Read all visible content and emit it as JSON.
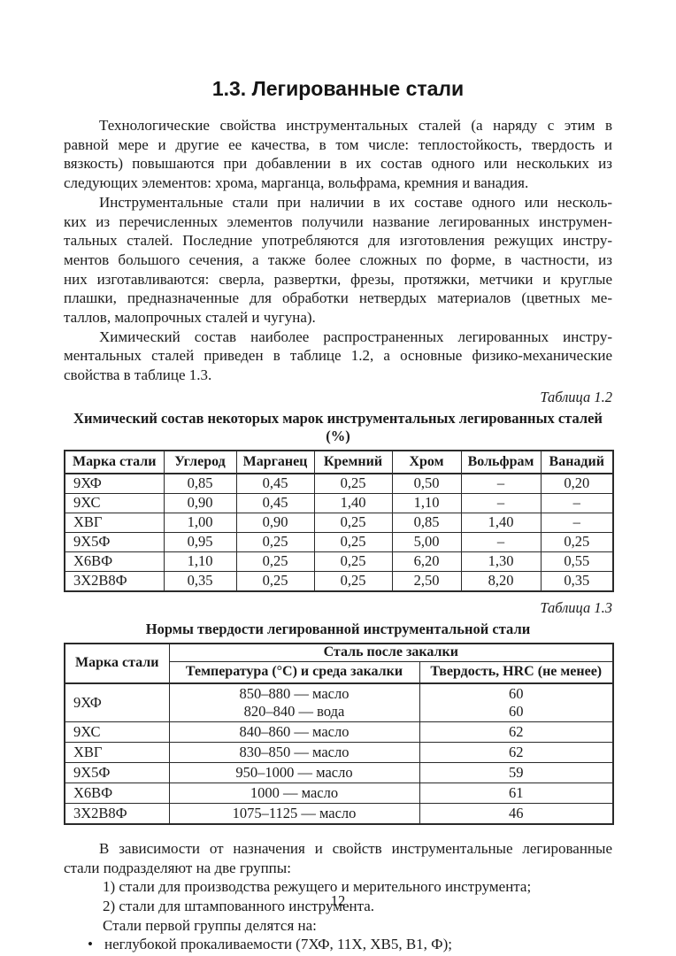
{
  "colors": {
    "ink": "#1b1b1b",
    "background": "#ffffff"
  },
  "title": "1.3. Легированные стали",
  "paragraphs": {
    "p1": [
      "Технологические свойства инструментальных сталей (а наряду с этим в",
      "равной мере и другие ее качества, в том числе: теплостойкость, твердость и",
      "вязкость) повышаются при добавлении в их состав одного или нескольких из",
      "следующих элементов: хрома, марганца, вольфрама, кремния и ванадия."
    ],
    "p2": [
      "Инструментальные стали при наличии в их составе одного или несколь-",
      "ких из перечисленных элементов получили название легированных инструмен-",
      "тальных сталей. Последние употребляются для изготовления режущих инстру-",
      "ментов большого сечения, а также более сложных по форме, в частности, из",
      "них изготавливаются: сверла, развертки, фрезы, протяжки, метчики и круглые",
      "плашки, предназначенные для обработки нетвердых материалов (цветных ме-",
      "таллов, малопрочных сталей и чугуна)."
    ],
    "p3": [
      "Химический состав наиболее распространенных легированных инстру-",
      "ментальных сталей приведен в таблице 1.2, а основные физико-механические",
      "свойства в таблице 1.3."
    ]
  },
  "table12": {
    "label": "Таблица 1.2",
    "caption": "Химический состав некоторых марок инструментальных легированных сталей (%)",
    "headers": [
      "Марка стали",
      "Углерод",
      "Марганец",
      "Кремний",
      "Хром",
      "Вольфрам",
      "Ванадий"
    ],
    "rows": [
      [
        "9ХФ",
        "0,85",
        "0,45",
        "0,25",
        "0,50",
        "–",
        "0,20"
      ],
      [
        "9ХС",
        "0,90",
        "0,45",
        "1,40",
        "1,10",
        "–",
        "–"
      ],
      [
        "ХВГ",
        "1,00",
        "0,90",
        "0,25",
        "0,85",
        "1,40",
        "–"
      ],
      [
        "9Х5Ф",
        "0,95",
        "0,25",
        "0,25",
        "5,00",
        "–",
        "0,25"
      ],
      [
        "Х6ВФ",
        "1,10",
        "0,25",
        "0,25",
        "6,20",
        "1,30",
        "0,55"
      ],
      [
        "3Х2В8Ф",
        "0,35",
        "0,25",
        "0,25",
        "2,50",
        "8,20",
        "0,35"
      ]
    ]
  },
  "table13": {
    "label": "Таблица 1.3",
    "caption": "Нормы твердости легированной инструментальной стали",
    "col_mark": "Марка стали",
    "group": "Сталь после закалки",
    "sub_temp": "Температура (°С) и среда закалки",
    "sub_hrc": "Твердость, HRC (не менее)",
    "rows": [
      {
        "mark": "9ХФ",
        "temp": "850–880 — масло\n820–840 — вода",
        "hrc": "60\n60"
      },
      {
        "mark": "9ХС",
        "temp": "840–860 — масло",
        "hrc": "62"
      },
      {
        "mark": "ХВГ",
        "temp": "830–850 — масло",
        "hrc": "62"
      },
      {
        "mark": "9Х5Ф",
        "temp": "950–1000 — масло",
        "hrc": "59"
      },
      {
        "mark": "Х6ВФ",
        "temp": "1000 — масло",
        "hrc": "61"
      },
      {
        "mark": "3Х2В8Ф",
        "temp": "1075–1125 — масло",
        "hrc": "46"
      }
    ]
  },
  "closing": {
    "p4": [
      "В зависимости от назначения и свойств инструментальные легированные",
      "стали подразделяют на две группы:"
    ],
    "items": [
      "1) стали для производства режущего и мерительного инструмента;",
      "2) стали для штампованного инструмента.",
      "Стали первой группы делятся на:"
    ],
    "bullet_marker": "•",
    "bullet_text": "неглубокой прокаливаемости (7ХФ, 11Х, ХВ5, В1, Ф);"
  },
  "page_number": "12"
}
